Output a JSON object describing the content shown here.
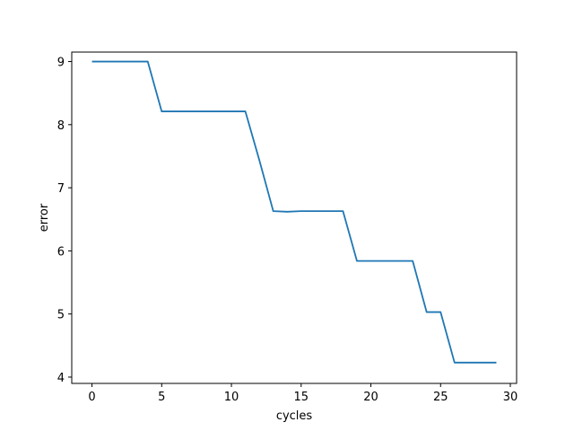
{
  "chart_data": {
    "type": "line",
    "xlabel": "cycles",
    "ylabel": "error",
    "xlim": [
      -1.45,
      30.45
    ],
    "ylim": [
      3.9,
      9.15
    ],
    "xticks": [
      0,
      5,
      10,
      15,
      20,
      25,
      30
    ],
    "yticks": [
      4,
      5,
      6,
      7,
      8,
      9
    ],
    "grid": false,
    "colors": {
      "line": "#1f77b4"
    },
    "series": [
      {
        "x": [
          0,
          1,
          2,
          3,
          4,
          5,
          6,
          7,
          8,
          9,
          10,
          11,
          12,
          13,
          14,
          15,
          16,
          17,
          18,
          19,
          20,
          21,
          22,
          23,
          24,
          25,
          26,
          27,
          28,
          29
        ],
        "values": [
          9.0,
          9.0,
          9.0,
          9.0,
          9.0,
          8.21,
          8.21,
          8.21,
          8.21,
          8.21,
          8.21,
          8.21,
          7.44,
          6.63,
          6.62,
          6.63,
          6.63,
          6.63,
          6.63,
          5.84,
          5.84,
          5.84,
          5.84,
          5.84,
          5.03,
          5.03,
          4.23,
          4.23,
          4.23,
          4.23
        ]
      }
    ]
  }
}
